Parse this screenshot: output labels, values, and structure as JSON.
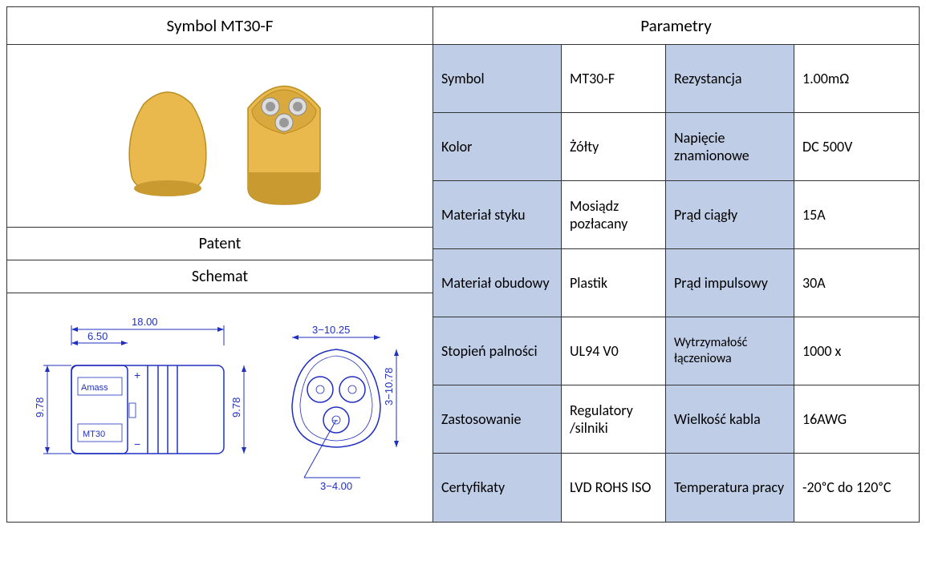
{
  "left": {
    "title": "Symbol MT30-F",
    "patent_label": "Patent",
    "schematic_label": "Schemat",
    "product_color": "#e9b94e",
    "product_stroke": "#b98c20",
    "diagram": {
      "color": "#2030c0",
      "dims": {
        "total_len": "18.00",
        "front_len": "6.50",
        "height_left": "9.78",
        "height_mid": "9.78",
        "tri_width": "3−10.25",
        "tri_height": "3−10.78",
        "pin": "3−4.00"
      }
    }
  },
  "right": {
    "title": "Parametry",
    "header_bg": "#bfcde6",
    "rows": [
      {
        "l1": "Symbol",
        "v1": "MT30-F",
        "l2": "Rezystancja",
        "v2": "1.00mΩ"
      },
      {
        "l1": "Kolor",
        "v1": "Żółty",
        "l2": "Napięcie znamionowe",
        "v2": "DC 500V"
      },
      {
        "l1": "Materiał styku",
        "v1": "Mosiądz pozłacany",
        "l2": "Prąd ciągły",
        "v2": "15A"
      },
      {
        "l1": "Materiał obudowy",
        "v1": "Plastik",
        "l2": "Prąd impulsowy",
        "v2": "30A"
      },
      {
        "l1": "Stopień palności",
        "v1": "UL94 V0",
        "l2": "Wytrzymałość łączeniowa",
        "v2": "1000 x",
        "l2small": true
      },
      {
        "l1": "Zastosowanie",
        "v1": "Regulatory /silniki",
        "l2": "Wielkość kabla",
        "v2": "16AWG"
      },
      {
        "l1": "Certyfikaty",
        "v1": "LVD ROHS ISO",
        "l2": "Temperatura pracy",
        "v2": "-20ᵒC do 120ᵒC"
      }
    ]
  }
}
